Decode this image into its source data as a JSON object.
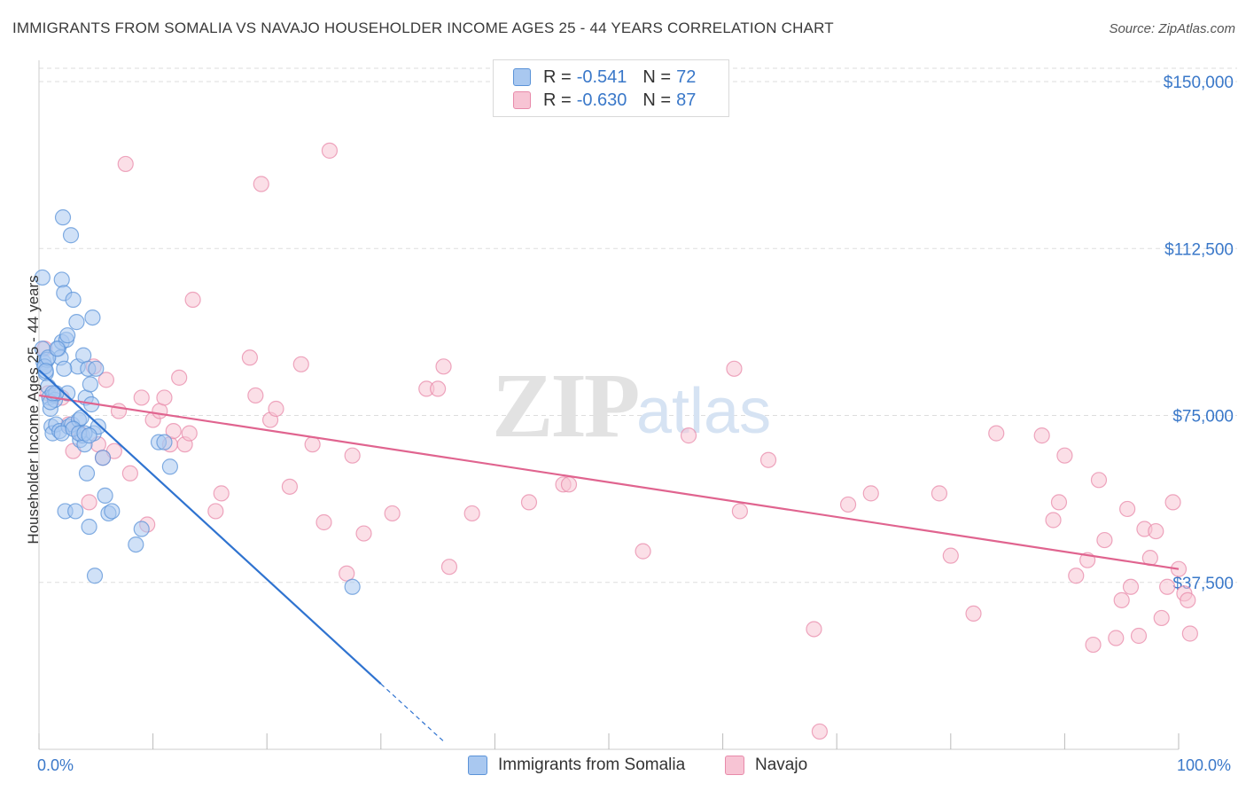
{
  "title": "IMMIGRANTS FROM SOMALIA VS NAVAJO HOUSEHOLDER INCOME AGES 25 - 44 YEARS CORRELATION CHART",
  "source": "Source: ZipAtlas.com",
  "watermark": {
    "zip": "ZIP",
    "atlas": "atlas"
  },
  "legend": {
    "rows": [
      {
        "r_label": "R =",
        "r_value": "-0.541",
        "n_label": "N =",
        "n_value": "72",
        "color": "#a9c8f0"
      },
      {
        "r_label": "R =",
        "r_value": "-0.630",
        "n_label": "N =",
        "n_value": "87",
        "color": "#f5b8cc"
      }
    ]
  },
  "bottom_legend": [
    "Immigrants from Somalia",
    "Navajo"
  ],
  "chart_data": {
    "type": "scatter",
    "title": "IMMIGRANTS FROM SOMALIA VS NAVAJO HOUSEHOLDER INCOME AGES 25 - 44 YEARS CORRELATION CHART",
    "xlabel": "",
    "ylabel": "Householder Income Ages 25 - 44 years",
    "xlim": [
      0,
      100
    ],
    "ylim": [
      0,
      153000
    ],
    "x_tick_labels": [
      "0.0%",
      "100.0%"
    ],
    "y_ticks": [
      37500,
      75000,
      112500,
      150000
    ],
    "y_tick_labels": [
      "$37,500",
      "$75,000",
      "$112,500",
      "$150,000"
    ],
    "grid": true,
    "legend_position": "top-center",
    "colors": {
      "somalia_fill": "#a9c8f0",
      "somalia_stroke": "#5b93d8",
      "somalia_line": "#2f73d0",
      "navajo_fill": "#f7c4d4",
      "navajo_stroke": "#e88aaa",
      "navajo_line": "#e0648f",
      "axis_text": "#3a78c9",
      "grid": "#dddddd"
    },
    "series": [
      {
        "name": "Immigrants from Somalia",
        "trend": {
          "x": [
            0.0,
            30.0
          ],
          "y": [
            85200,
            14700
          ]
        },
        "trend_dashed": {
          "x": [
            30.0,
            35.5
          ],
          "y": [
            14700,
            1800
          ]
        },
        "points": [
          [
            0.3,
            106000
          ],
          [
            0.3,
            90000
          ],
          [
            0.4,
            87000
          ],
          [
            0.5,
            86000
          ],
          [
            0.6,
            84500
          ],
          [
            0.7,
            87500
          ],
          [
            0.8,
            81500
          ],
          [
            0.9,
            79000
          ],
          [
            1.0,
            76500
          ],
          [
            1.1,
            72500
          ],
          [
            1.2,
            71000
          ],
          [
            1.3,
            79500
          ],
          [
            1.4,
            78500
          ],
          [
            1.5,
            73000
          ],
          [
            1.7,
            90000
          ],
          [
            1.8,
            71500
          ],
          [
            1.9,
            88000
          ],
          [
            2.0,
            91500
          ],
          [
            2.0,
            105500
          ],
          [
            2.1,
            119500
          ],
          [
            2.2,
            102500
          ],
          [
            2.3,
            53500
          ],
          [
            2.4,
            92000
          ],
          [
            2.5,
            80000
          ],
          [
            2.6,
            72500
          ],
          [
            2.8,
            115500
          ],
          [
            2.9,
            73000
          ],
          [
            3.0,
            101000
          ],
          [
            3.2,
            53500
          ],
          [
            3.3,
            96000
          ],
          [
            3.4,
            86000
          ],
          [
            3.5,
            74000
          ],
          [
            3.6,
            69500
          ],
          [
            3.7,
            74500
          ],
          [
            3.8,
            70500
          ],
          [
            3.9,
            88500
          ],
          [
            4.0,
            68500
          ],
          [
            4.1,
            79000
          ],
          [
            4.2,
            62000
          ],
          [
            4.3,
            85500
          ],
          [
            4.4,
            50000
          ],
          [
            4.5,
            82000
          ],
          [
            4.6,
            77500
          ],
          [
            4.7,
            97000
          ],
          [
            4.8,
            71000
          ],
          [
            4.9,
            39000
          ],
          [
            5.0,
            85500
          ],
          [
            5.2,
            72500
          ],
          [
            5.6,
            65500
          ],
          [
            5.8,
            57000
          ],
          [
            6.1,
            53000
          ],
          [
            6.4,
            53500
          ],
          [
            8.5,
            46000
          ],
          [
            9.0,
            49500
          ],
          [
            10.5,
            69000
          ],
          [
            11.0,
            69000
          ],
          [
            11.5,
            63500
          ],
          [
            27.5,
            36500
          ],
          [
            1.0,
            78000
          ],
          [
            2.0,
            71000
          ],
          [
            3.0,
            72000
          ],
          [
            1.5,
            80000
          ],
          [
            2.5,
            93000
          ],
          [
            0.5,
            86000
          ],
          [
            0.8,
            88000
          ],
          [
            1.2,
            80000
          ],
          [
            3.5,
            71000
          ],
          [
            4.0,
            71000
          ],
          [
            0.6,
            85000
          ],
          [
            1.6,
            90000
          ],
          [
            2.2,
            85500
          ],
          [
            4.4,
            70500
          ]
        ]
      },
      {
        "name": "Navajo",
        "trend": {
          "x": [
            0.0,
            100.0
          ],
          "y": [
            79500,
            40500
          ]
        },
        "points": [
          [
            0.5,
            90000
          ],
          [
            0.8,
            80000
          ],
          [
            2.0,
            79000
          ],
          [
            2.6,
            73000
          ],
          [
            3.0,
            67000
          ],
          [
            3.6,
            71000
          ],
          [
            4.4,
            55500
          ],
          [
            4.8,
            86000
          ],
          [
            5.2,
            68500
          ],
          [
            5.6,
            65500
          ],
          [
            5.9,
            83000
          ],
          [
            6.6,
            67000
          ],
          [
            7.0,
            76000
          ],
          [
            7.6,
            131500
          ],
          [
            8.0,
            62000
          ],
          [
            9.0,
            79000
          ],
          [
            9.5,
            50500
          ],
          [
            10.0,
            74000
          ],
          [
            10.6,
            76000
          ],
          [
            11.0,
            79000
          ],
          [
            11.5,
            68500
          ],
          [
            11.8,
            71500
          ],
          [
            12.3,
            83500
          ],
          [
            12.8,
            68500
          ],
          [
            13.2,
            71000
          ],
          [
            13.5,
            101000
          ],
          [
            15.5,
            53500
          ],
          [
            16.0,
            57500
          ],
          [
            18.5,
            88000
          ],
          [
            19.0,
            79500
          ],
          [
            19.5,
            127000
          ],
          [
            20.3,
            74000
          ],
          [
            20.8,
            76500
          ],
          [
            22.0,
            59000
          ],
          [
            23.0,
            86500
          ],
          [
            24.0,
            68500
          ],
          [
            25.0,
            51000
          ],
          [
            25.5,
            134500
          ],
          [
            27.0,
            39500
          ],
          [
            27.5,
            66000
          ],
          [
            28.5,
            48500
          ],
          [
            31.0,
            53000
          ],
          [
            34.0,
            81000
          ],
          [
            35.0,
            81000
          ],
          [
            35.5,
            86000
          ],
          [
            36.0,
            41000
          ],
          [
            38.0,
            53000
          ],
          [
            43.0,
            55500
          ],
          [
            46.0,
            59500
          ],
          [
            46.5,
            59500
          ],
          [
            53.0,
            44500
          ],
          [
            57.0,
            70500
          ],
          [
            61.0,
            85500
          ],
          [
            61.5,
            53500
          ],
          [
            64.0,
            65000
          ],
          [
            68.0,
            27000
          ],
          [
            68.5,
            4000
          ],
          [
            71.0,
            55000
          ],
          [
            73.0,
            57500
          ],
          [
            79.0,
            57500
          ],
          [
            80.0,
            43500
          ],
          [
            82.0,
            30500
          ],
          [
            84.0,
            71000
          ],
          [
            88.0,
            70500
          ],
          [
            89.0,
            51500
          ],
          [
            89.5,
            55500
          ],
          [
            90.0,
            66000
          ],
          [
            91.0,
            39000
          ],
          [
            92.0,
            42500
          ],
          [
            92.5,
            23500
          ],
          [
            93.0,
            60500
          ],
          [
            93.5,
            47000
          ],
          [
            94.5,
            25000
          ],
          [
            95.0,
            33500
          ],
          [
            95.5,
            54000
          ],
          [
            95.8,
            36500
          ],
          [
            96.5,
            25500
          ],
          [
            97.0,
            49500
          ],
          [
            97.5,
            43000
          ],
          [
            98.0,
            49000
          ],
          [
            98.5,
            29500
          ],
          [
            99.0,
            36500
          ],
          [
            99.5,
            55500
          ],
          [
            100.0,
            40500
          ],
          [
            100.5,
            35000
          ],
          [
            100.8,
            33500
          ],
          [
            101.0,
            26000
          ]
        ]
      }
    ]
  }
}
